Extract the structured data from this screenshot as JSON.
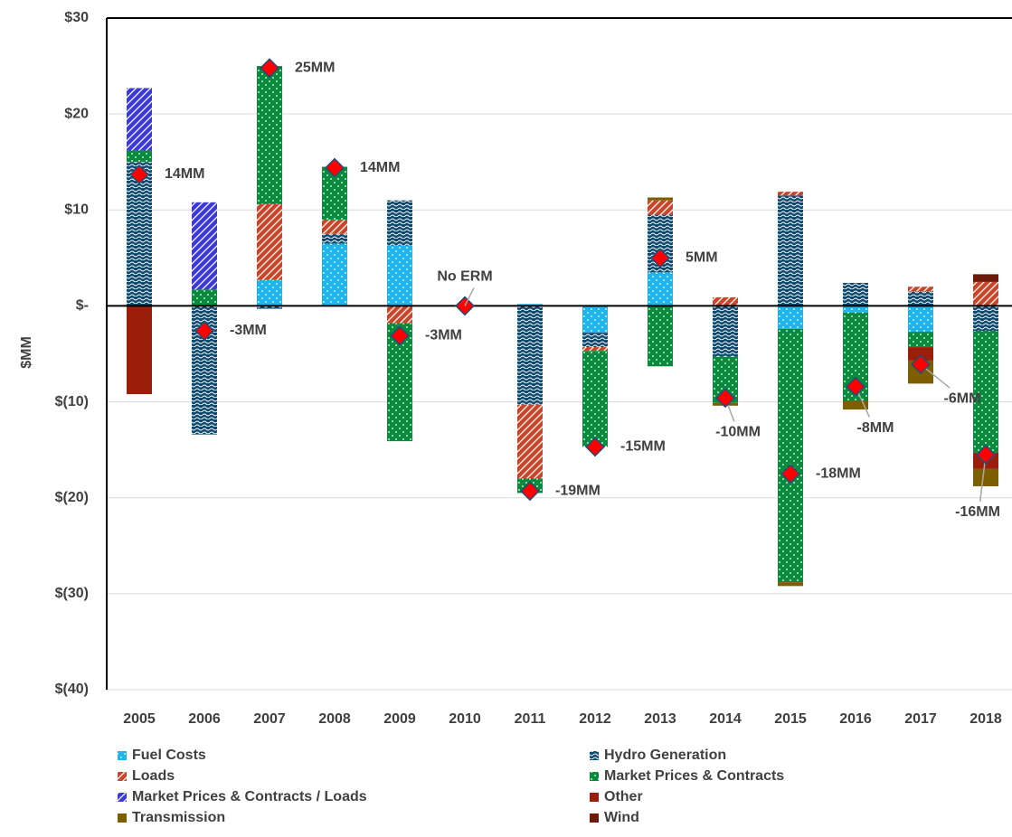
{
  "chart_data": {
    "type": "stacked-bar",
    "y_label": "$MM",
    "categories": [
      "2005",
      "2006",
      "2007",
      "2008",
      "2009",
      "2010",
      "2011",
      "2012",
      "2013",
      "2014",
      "2015",
      "2016",
      "2017",
      "2018"
    ],
    "ylim": [
      -40,
      30
    ],
    "yticks": [
      {
        "value": 30,
        "label": "$30"
      },
      {
        "value": 20,
        "label": "$20"
      },
      {
        "value": 10,
        "label": "$10"
      },
      {
        "value": 0,
        "label": "$-"
      },
      {
        "value": -10,
        "label": "$(10)"
      },
      {
        "value": -20,
        "label": "$(20)"
      },
      {
        "value": -30,
        "label": "$(30)"
      },
      {
        "value": -40,
        "label": "$(40)"
      }
    ],
    "grid": true,
    "series": [
      {
        "name": "Fuel Costs",
        "color": "#1fb4ee",
        "pattern": "dots",
        "values": [
          null,
          null,
          2.7,
          6.5,
          6.3,
          null,
          0.2,
          -2.8,
          3.5,
          null,
          -2.4,
          -0.7,
          -2.7,
          null
        ]
      },
      {
        "name": "Hydro Generation",
        "color": "#134b6e",
        "pattern": "waves",
        "values": [
          15,
          -13.4,
          -0.3,
          1,
          4.7,
          null,
          -10.3,
          -1.5,
          6,
          -5.3,
          11.5,
          2.4,
          1.5,
          -2.6
        ]
      },
      {
        "name": "Loads",
        "color": "#c8472b",
        "pattern": "diagonal",
        "values": [
          null,
          null,
          7.9,
          1.5,
          -1.8,
          null,
          -7.7,
          -0.4,
          1.5,
          0.9,
          0.4,
          null,
          0.5,
          2.5
        ]
      },
      {
        "name": "Market Prices & Contracts",
        "color": "#0a8a3c",
        "pattern": "dots",
        "values": [
          1.2,
          1.7,
          14.4,
          5.5,
          -12.3,
          null,
          -1.5,
          -10,
          -6.3,
          -4.8,
          -26.4,
          -9.2,
          -1.6,
          -12.7
        ]
      },
      {
        "name": "Market Prices & Contracts / Loads",
        "color": "#3a3ad6",
        "pattern": "diagonal",
        "values": [
          6.5,
          9.1,
          null,
          null,
          null,
          null,
          null,
          null,
          null,
          null,
          null,
          null,
          null,
          null
        ]
      },
      {
        "name": "Other",
        "color": "#9a1e0a",
        "pattern": "solid",
        "values": [
          -9.2,
          null,
          null,
          null,
          null,
          null,
          null,
          null,
          null,
          null,
          null,
          null,
          -1.4,
          -1.7
        ]
      },
      {
        "name": "Transmission",
        "color": "#7d5e00",
        "pattern": "solid",
        "values": [
          null,
          null,
          null,
          null,
          null,
          null,
          null,
          null,
          0.3,
          -0.3,
          -0.4,
          -0.9,
          -2.4,
          -1.8
        ]
      },
      {
        "name": "Wind",
        "color": "#6e1a0a",
        "pattern": "solid",
        "values": [
          null,
          null,
          null,
          null,
          null,
          null,
          null,
          null,
          null,
          null,
          null,
          null,
          null,
          0.8
        ]
      }
    ],
    "markers": {
      "color": "#ff0000",
      "values": [
        13.7,
        -2.6,
        24.8,
        14.4,
        -3.1,
        0,
        -19.3,
        -14.7,
        5,
        -9.6,
        -17.5,
        -8.4,
        -6.1,
        -15.5
      ],
      "value_labels": [
        "14MM",
        "-3MM",
        "25MM",
        "14MM",
        "-3MM",
        null,
        "-19MM",
        "-15MM",
        "5MM",
        "-10MM",
        "-18MM",
        "-8MM",
        "-6MM",
        "-16MM"
      ]
    },
    "annotations": [
      {
        "text": "No ERM",
        "category": "2010"
      }
    ]
  }
}
